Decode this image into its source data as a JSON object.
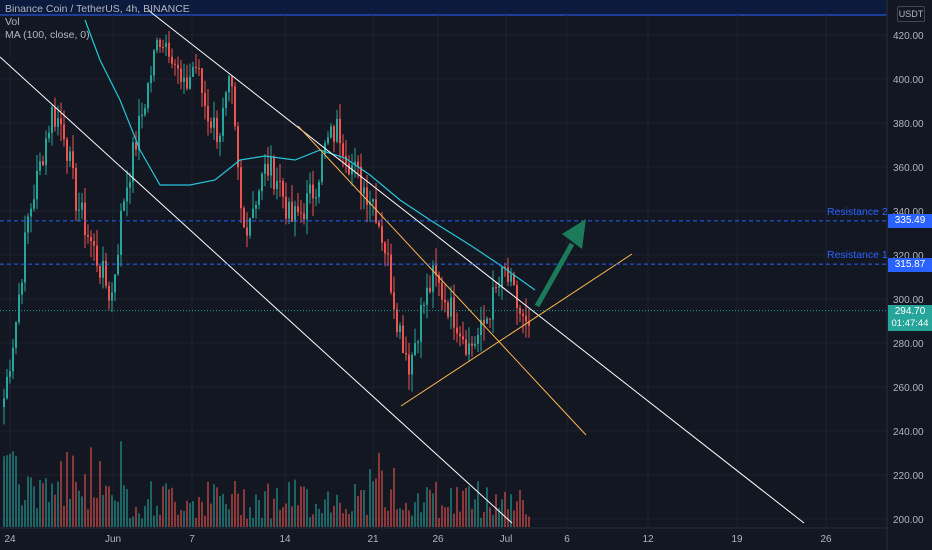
{
  "legend": {
    "title": "Binance Coin / TetherUS, 4h, BINANCE",
    "vol": "Vol",
    "ma": "MA (100, close, 0)"
  },
  "currency": "USDT",
  "price_now": {
    "value": "294.70",
    "countdown": "01:47:44"
  },
  "resistance_1": {
    "label": "Resistance 1",
    "value": "315.87"
  },
  "resistance_2": {
    "label": "Resistance 2",
    "value": "335.49"
  },
  "colors": {
    "up": "#26a69a",
    "down": "#ef5350",
    "ma": "#26c6da",
    "trend": "#ffffff",
    "wedge": "#ffb74d",
    "resistance": "#2962ff",
    "arrow": "#1b7a5a"
  },
  "chart_data": {
    "type": "candlestick",
    "title": "Binance Coin / TetherUS, 4h, BINANCE",
    "y_ticks": [
      "420.00",
      "400.00",
      "380.00",
      "360.00",
      "340.00",
      "320.00",
      "300.00",
      "280.00",
      "260.00",
      "240.00",
      "220.00",
      "200.00"
    ],
    "x_ticks": [
      "24",
      "Jun",
      "7",
      "14",
      "21",
      "26",
      "Jul",
      "6",
      "12",
      "19",
      "26"
    ],
    "ylim": [
      198,
      426
    ],
    "price_path": [
      [
        0,
        255
      ],
      [
        2,
        290
      ],
      [
        4,
        336
      ],
      [
        6,
        360
      ],
      [
        8,
        385
      ],
      [
        10,
        378
      ],
      [
        12,
        346
      ],
      [
        14,
        330
      ],
      [
        16,
        315
      ],
      [
        18,
        300
      ],
      [
        20,
        345
      ],
      [
        22,
        370
      ],
      [
        24,
        395
      ],
      [
        26,
        420
      ],
      [
        28,
        415
      ],
      [
        30,
        393
      ],
      [
        32,
        408
      ],
      [
        34,
        385
      ],
      [
        36,
        375
      ],
      [
        38,
        398
      ],
      [
        40,
        330
      ],
      [
        42,
        345
      ],
      [
        44,
        360
      ],
      [
        46,
        355
      ],
      [
        48,
        335
      ],
      [
        50,
        340
      ],
      [
        52,
        350
      ],
      [
        54,
        370
      ],
      [
        56,
        378
      ],
      [
        58,
        362
      ],
      [
        60,
        352
      ],
      [
        62,
        345
      ],
      [
        64,
        322
      ],
      [
        66,
        290
      ],
      [
        68,
        270
      ],
      [
        70,
        295
      ],
      [
        72,
        310
      ],
      [
        74,
        300
      ],
      [
        76,
        290
      ],
      [
        78,
        278
      ],
      [
        80,
        285
      ],
      [
        82,
        300
      ],
      [
        84,
        312
      ],
      [
        86,
        297
      ],
      [
        88,
        282
      ]
    ],
    "ma_label": "MA (100, close, 0)",
    "annotations": [
      "Resistance 1",
      "Resistance 2"
    ],
    "resistance_levels": [
      315.87,
      335.49
    ],
    "current_price": 294.7
  }
}
